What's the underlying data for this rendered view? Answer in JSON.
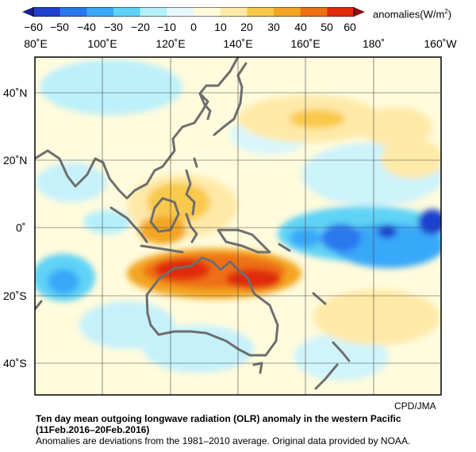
{
  "colorbar": {
    "ticks": [
      "−60",
      "−50",
      "−40",
      "−30",
      "−20",
      "−10",
      "0",
      "10",
      "20",
      "30",
      "40",
      "50",
      "60"
    ],
    "colors": [
      "#1f3fcf",
      "#2a78ee",
      "#38a8f8",
      "#5fd3f6",
      "#b4f0fb",
      "#e6fafd",
      "#fffbdc",
      "#ffe9a8",
      "#f9c94b",
      "#f3a624",
      "#ee6f14",
      "#e12b0c"
    ],
    "units": "anomalies(W/m",
    "units_sup": "2",
    "units_close": ")"
  },
  "map": {
    "lon_labels": [
      "80˚E",
      "100˚E",
      "120˚E",
      "140˚E",
      "160˚E",
      "180˚",
      "160˚W"
    ],
    "lat_labels": [
      "40˚N",
      "20˚N",
      "0˚",
      "20˚S",
      "40˚S"
    ],
    "coast_color": "#6e6e6e"
  },
  "credit": "CPD/JMA",
  "caption": {
    "line1": "Ten day mean outgoing longwave radiation (OLR) anomaly in the western Pacific",
    "line2": "(11Feb.2016–20Feb.2016)",
    "line3": "Anomalies are deviations from the 1981–2010 average. Original data provided by NOAA."
  }
}
